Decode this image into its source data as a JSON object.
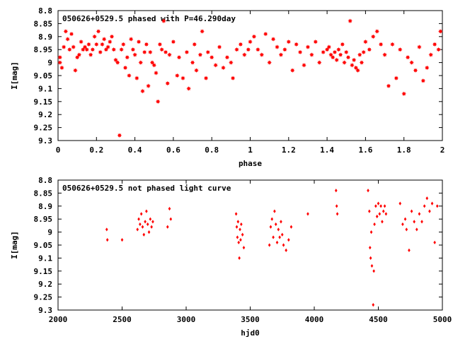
{
  "chart_data": [
    {
      "type": "scatter",
      "title": "050626+0529.5 phased with P=46.290day",
      "xlabel": "phase",
      "ylabel": "I[mag]",
      "xlim": [
        0,
        2
      ],
      "ylim": [
        9.3,
        8.8
      ],
      "y_inverted": true,
      "xticks": [
        0,
        0.2,
        0.4,
        0.6,
        0.8,
        1,
        1.2,
        1.4,
        1.6,
        1.8,
        2
      ],
      "xtick_labels": [
        "0",
        "0.2",
        "0.4",
        "0.6",
        "0.8",
        "1",
        "1.2",
        "1.4",
        "1.6",
        "1.8",
        "2"
      ],
      "yticks": [
        8.8,
        8.85,
        8.9,
        8.95,
        9,
        9.05,
        9.1,
        9.15,
        9.2,
        9.25,
        9.3
      ],
      "ytick_labels": [
        "8.8",
        "8.85",
        "8.9",
        "8.95",
        "9",
        "9.05",
        "9.1",
        "9.15",
        "9.2",
        "9.25",
        "9.3"
      ],
      "grid": false,
      "marker_color": "#ff0000",
      "marker": "star",
      "points": [
        [
          0.01,
          9.0
        ],
        [
          0.01,
          8.98
        ],
        [
          0.02,
          9.02
        ],
        [
          0.03,
          8.94
        ],
        [
          0.04,
          8.88
        ],
        [
          0.05,
          8.91
        ],
        [
          0.06,
          8.95
        ],
        [
          0.07,
          8.89
        ],
        [
          0.08,
          8.94
        ],
        [
          0.09,
          9.03
        ],
        [
          0.1,
          8.98
        ],
        [
          0.11,
          8.97
        ],
        [
          0.12,
          8.92
        ],
        [
          0.13,
          8.95
        ],
        [
          0.14,
          8.94
        ],
        [
          0.15,
          8.95
        ],
        [
          0.16,
          8.93
        ],
        [
          0.17,
          8.97
        ],
        [
          0.18,
          8.95
        ],
        [
          0.19,
          8.9
        ],
        [
          0.2,
          8.93
        ],
        [
          0.21,
          8.88
        ],
        [
          0.22,
          8.96
        ],
        [
          0.23,
          8.93
        ],
        [
          0.24,
          8.91
        ],
        [
          0.25,
          8.95
        ],
        [
          0.26,
          8.94
        ],
        [
          0.27,
          8.92
        ],
        [
          0.28,
          8.9
        ],
        [
          0.29,
          8.95
        ],
        [
          0.3,
          8.99
        ],
        [
          0.31,
          9.0
        ],
        [
          0.32,
          9.28
        ],
        [
          0.33,
          8.95
        ],
        [
          0.34,
          8.93
        ],
        [
          0.35,
          9.02
        ],
        [
          0.36,
          8.98
        ],
        [
          0.37,
          9.05
        ],
        [
          0.38,
          8.91
        ],
        [
          0.39,
          8.95
        ],
        [
          0.4,
          8.97
        ],
        [
          0.41,
          9.06
        ],
        [
          0.42,
          8.92
        ],
        [
          0.43,
          9.0
        ],
        [
          0.44,
          9.11
        ],
        [
          0.45,
          8.96
        ],
        [
          0.46,
          8.93
        ],
        [
          0.47,
          9.09
        ],
        [
          0.48,
          8.96
        ],
        [
          0.49,
          9.0
        ],
        [
          0.5,
          9.01
        ],
        [
          0.51,
          9.04
        ],
        [
          0.52,
          9.15
        ],
        [
          0.53,
          8.93
        ],
        [
          0.54,
          8.95
        ],
        [
          0.55,
          8.84
        ],
        [
          0.56,
          8.96
        ],
        [
          0.57,
          9.08
        ],
        [
          0.58,
          8.97
        ],
        [
          0.6,
          8.92
        ],
        [
          0.62,
          9.05
        ],
        [
          0.63,
          8.98
        ],
        [
          0.65,
          9.06
        ],
        [
          0.67,
          8.96
        ],
        [
          0.68,
          9.1
        ],
        [
          0.7,
          9.0
        ],
        [
          0.71,
          8.93
        ],
        [
          0.72,
          9.03
        ],
        [
          0.74,
          8.97
        ],
        [
          0.75,
          8.88
        ],
        [
          0.77,
          9.06
        ],
        [
          0.78,
          8.96
        ],
        [
          0.8,
          8.98
        ],
        [
          0.82,
          9.01
        ],
        [
          0.84,
          8.94
        ],
        [
          0.86,
          9.02
        ],
        [
          0.88,
          8.98
        ],
        [
          0.9,
          9.0
        ],
        [
          0.91,
          9.06
        ],
        [
          0.93,
          8.95
        ],
        [
          0.95,
          8.93
        ],
        [
          0.97,
          8.97
        ],
        [
          0.99,
          8.95
        ],
        [
          1.0,
          8.92
        ],
        [
          1.02,
          8.9
        ],
        [
          1.04,
          8.95
        ],
        [
          1.06,
          8.97
        ],
        [
          1.08,
          8.89
        ],
        [
          1.1,
          9.0
        ],
        [
          1.12,
          8.91
        ],
        [
          1.14,
          8.94
        ],
        [
          1.16,
          8.97
        ],
        [
          1.18,
          8.95
        ],
        [
          1.2,
          8.92
        ],
        [
          1.22,
          9.03
        ],
        [
          1.24,
          8.93
        ],
        [
          1.26,
          8.96
        ],
        [
          1.28,
          9.01
        ],
        [
          1.3,
          8.94
        ],
        [
          1.32,
          8.97
        ],
        [
          1.34,
          8.92
        ],
        [
          1.36,
          9.0
        ],
        [
          1.38,
          8.96
        ],
        [
          1.4,
          8.95
        ],
        [
          1.41,
          8.94
        ],
        [
          1.42,
          8.97
        ],
        [
          1.43,
          8.98
        ],
        [
          1.44,
          8.96
        ],
        [
          1.45,
          8.99
        ],
        [
          1.46,
          8.95
        ],
        [
          1.47,
          8.97
        ],
        [
          1.48,
          8.93
        ],
        [
          1.49,
          9.0
        ],
        [
          1.5,
          8.96
        ],
        [
          1.51,
          8.98
        ],
        [
          1.52,
          8.84
        ],
        [
          1.53,
          9.01
        ],
        [
          1.54,
          8.99
        ],
        [
          1.55,
          9.02
        ],
        [
          1.56,
          9.03
        ],
        [
          1.57,
          8.97
        ],
        [
          1.58,
          9.0
        ],
        [
          1.59,
          8.96
        ],
        [
          1.6,
          8.92
        ],
        [
          1.62,
          8.95
        ],
        [
          1.64,
          8.9
        ],
        [
          1.66,
          8.88
        ],
        [
          1.68,
          8.93
        ],
        [
          1.7,
          8.97
        ],
        [
          1.72,
          9.09
        ],
        [
          1.74,
          8.93
        ],
        [
          1.76,
          9.06
        ],
        [
          1.78,
          8.95
        ],
        [
          1.8,
          9.12
        ],
        [
          1.82,
          8.98
        ],
        [
          1.84,
          9.0
        ],
        [
          1.86,
          9.03
        ],
        [
          1.88,
          8.94
        ],
        [
          1.9,
          9.07
        ],
        [
          1.92,
          9.02
        ],
        [
          1.94,
          8.97
        ],
        [
          1.96,
          8.93
        ],
        [
          1.98,
          8.95
        ],
        [
          1.99,
          8.88
        ]
      ]
    },
    {
      "type": "scatter",
      "title": "050626+0529.5 not phased light curve",
      "xlabel": "hjd0",
      "ylabel": "I[mag]",
      "xlim": [
        2000,
        5000
      ],
      "ylim": [
        9.3,
        8.8
      ],
      "y_inverted": true,
      "xticks": [
        2000,
        2500,
        3000,
        3500,
        4000,
        4500,
        5000
      ],
      "xtick_labels": [
        "2000",
        "2500",
        "3000",
        "3500",
        "4000",
        "4500",
        "5000"
      ],
      "yticks": [
        8.8,
        8.85,
        8.9,
        8.95,
        9,
        9.05,
        9.1,
        9.15,
        9.2,
        9.25,
        9.3
      ],
      "ytick_labels": [
        "8.8",
        "8.85",
        "8.9",
        "8.95",
        "9",
        "9.05",
        "9.1",
        "9.15",
        "9.2",
        "9.25",
        "9.3"
      ],
      "grid": false,
      "marker_color": "#ff0000",
      "marker": "diamond",
      "points": [
        [
          2380,
          8.99
        ],
        [
          2385,
          9.03
        ],
        [
          2500,
          9.03
        ],
        [
          2620,
          8.99
        ],
        [
          2630,
          8.95
        ],
        [
          2640,
          8.97
        ],
        [
          2650,
          8.93
        ],
        [
          2660,
          8.98
        ],
        [
          2670,
          9.01
        ],
        [
          2680,
          8.96
        ],
        [
          2690,
          8.92
        ],
        [
          2700,
          8.97
        ],
        [
          2710,
          9.0
        ],
        [
          2720,
          8.95
        ],
        [
          2730,
          8.98
        ],
        [
          2740,
          8.96
        ],
        [
          2855,
          8.98
        ],
        [
          2870,
          8.91
        ],
        [
          2880,
          8.95
        ],
        [
          3390,
          8.93
        ],
        [
          3395,
          8.98
        ],
        [
          3400,
          9.02
        ],
        [
          3405,
          8.96
        ],
        [
          3410,
          9.04
        ],
        [
          3415,
          9.1
        ],
        [
          3420,
          8.99
        ],
        [
          3425,
          9.03
        ],
        [
          3430,
          8.97
        ],
        [
          3440,
          9.01
        ],
        [
          3450,
          9.06
        ],
        [
          3650,
          9.05
        ],
        [
          3660,
          8.98
        ],
        [
          3670,
          8.95
        ],
        [
          3680,
          9.02
        ],
        [
          3690,
          8.92
        ],
        [
          3700,
          8.97
        ],
        [
          3710,
          9.04
        ],
        [
          3720,
          8.99
        ],
        [
          3730,
          9.02
        ],
        [
          3740,
          8.96
        ],
        [
          3750,
          9.01
        ],
        [
          3760,
          9.05
        ],
        [
          3780,
          9.07
        ],
        [
          3800,
          9.03
        ],
        [
          3820,
          8.98
        ],
        [
          3950,
          8.93
        ],
        [
          4170,
          8.84
        ],
        [
          4175,
          8.9
        ],
        [
          4180,
          8.93
        ],
        [
          4420,
          8.84
        ],
        [
          4430,
          8.92
        ],
        [
          4435,
          9.06
        ],
        [
          4440,
          9.1
        ],
        [
          4445,
          9.0
        ],
        [
          4450,
          9.13
        ],
        [
          4460,
          9.28
        ],
        [
          4465,
          9.15
        ],
        [
          4470,
          8.97
        ],
        [
          4480,
          8.9
        ],
        [
          4490,
          8.94
        ],
        [
          4500,
          8.89
        ],
        [
          4510,
          8.93
        ],
        [
          4520,
          8.9
        ],
        [
          4530,
          8.96
        ],
        [
          4540,
          8.92
        ],
        [
          4550,
          8.9
        ],
        [
          4560,
          8.93
        ],
        [
          4670,
          8.89
        ],
        [
          4690,
          8.97
        ],
        [
          4710,
          8.95
        ],
        [
          4720,
          8.99
        ],
        [
          4740,
          9.07
        ],
        [
          4760,
          8.92
        ],
        [
          4780,
          8.96
        ],
        [
          4800,
          8.99
        ],
        [
          4820,
          8.93
        ],
        [
          4840,
          8.96
        ],
        [
          4860,
          8.9
        ],
        [
          4880,
          8.87
        ],
        [
          4900,
          8.92
        ],
        [
          4920,
          8.89
        ],
        [
          4940,
          9.04
        ],
        [
          4960,
          8.9
        ]
      ]
    }
  ]
}
